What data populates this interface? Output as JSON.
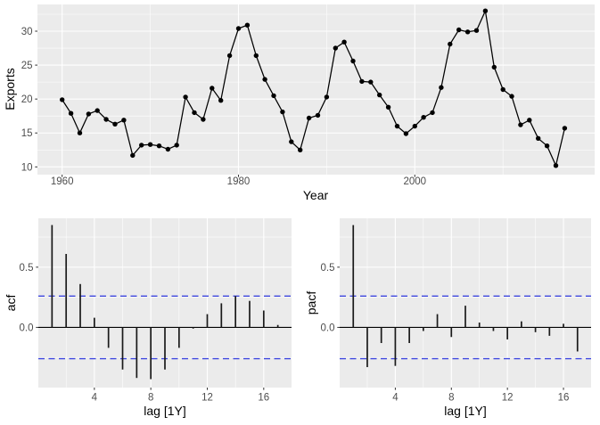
{
  "figure": {
    "background": "#ffffff",
    "panel_bg": "#ebebeb",
    "grid_color": "#ffffff",
    "tick_label_color": "#4d4d4d",
    "tick_mark_color": "#333333",
    "axis_title_color": "#000000",
    "series_color": "#000000",
    "stem_color": "#1a1a1a",
    "zero_line_color": "#000000",
    "significance_color": "#3d46dd"
  },
  "chart_data": [
    {
      "type": "line",
      "series_name": "Exports",
      "xlabel": "Year",
      "ylabel": "Exports",
      "marker": "point",
      "grid": "on",
      "legend": "none",
      "x_start": 1960,
      "x_step": 1,
      "x_end": 2017,
      "values": [
        19.9,
        17.9,
        15.0,
        17.8,
        18.3,
        17.0,
        16.3,
        16.9,
        11.7,
        13.2,
        13.3,
        13.1,
        12.6,
        13.2,
        20.3,
        18.0,
        17.0,
        21.6,
        19.8,
        26.4,
        30.4,
        30.9,
        26.4,
        22.9,
        20.5,
        18.1,
        13.7,
        12.5,
        17.2,
        17.6,
        20.3,
        27.5,
        28.4,
        25.6,
        22.6,
        22.5,
        20.6,
        18.8,
        16.0,
        14.9,
        16.0,
        17.3,
        18.0,
        21.7,
        28.1,
        30.2,
        29.9,
        30.1,
        33.0,
        24.7,
        21.4,
        20.4,
        16.2,
        16.9,
        14.2,
        13.1,
        10.2,
        15.7
      ],
      "xlim": [
        1957.2,
        2020.4
      ],
      "ylim": [
        8.86,
        33.94
      ],
      "x_tick_values": [
        1960,
        1980,
        2000
      ],
      "x_tick_labels": [
        "1960",
        "1980",
        "2000"
      ],
      "x_minor": [
        1970,
        1990,
        2010
      ],
      "y_tick_values": [
        10,
        15,
        20,
        25,
        30
      ],
      "y_tick_labels": [
        "10",
        "15",
        "20",
        "25",
        "30"
      ],
      "y_minor": [
        12.5,
        17.5,
        22.5,
        27.5,
        32.5
      ]
    },
    {
      "type": "bar",
      "subtype": "acf-stems",
      "xlabel": "lag [1Y]",
      "ylabel": "acf",
      "grid": "on",
      "legend": "none",
      "x": [
        1,
        2,
        3,
        4,
        5,
        6,
        7,
        8,
        9,
        10,
        11,
        12,
        13,
        14,
        15,
        16,
        17
      ],
      "values": [
        0.85,
        0.61,
        0.36,
        0.08,
        -0.17,
        -0.35,
        -0.42,
        -0.43,
        -0.35,
        -0.17,
        -0.01,
        0.11,
        0.2,
        0.26,
        0.22,
        0.14,
        0.02
      ],
      "significance_bounds": [
        0.26,
        -0.26
      ],
      "xlim": [
        0.03,
        17.97
      ],
      "ylim": [
        -0.5,
        0.906
      ],
      "x_tick_values": [
        4,
        8,
        12,
        16
      ],
      "x_tick_labels": [
        "4",
        "8",
        "12",
        "16"
      ],
      "x_minor": [
        2,
        6,
        10,
        14
      ],
      "y_tick_values": [
        0,
        0.5
      ],
      "y_tick_labels": [
        "0.0",
        "0.5"
      ],
      "y_minor": [
        -0.25,
        0.25,
        0.75
      ]
    },
    {
      "type": "bar",
      "subtype": "pacf-stems",
      "xlabel": "lag [1Y]",
      "ylabel": "pacf",
      "grid": "on",
      "legend": "none",
      "x": [
        1,
        2,
        3,
        4,
        5,
        6,
        7,
        8,
        9,
        10,
        11,
        12,
        13,
        14,
        15,
        16,
        17
      ],
      "values": [
        0.85,
        -0.33,
        -0.13,
        -0.32,
        -0.13,
        -0.03,
        0.11,
        -0.08,
        0.18,
        0.04,
        -0.03,
        -0.1,
        0.05,
        -0.04,
        -0.07,
        0.03,
        -0.2
      ],
      "significance_bounds": [
        0.26,
        -0.26
      ],
      "xlim": [
        0.03,
        17.97
      ],
      "ylim": [
        -0.5,
        0.906
      ],
      "x_tick_values": [
        4,
        8,
        12,
        16
      ],
      "x_tick_labels": [
        "4",
        "8",
        "12",
        "16"
      ],
      "x_minor": [
        2,
        6,
        10,
        14
      ],
      "y_tick_values": [
        0,
        0.5
      ],
      "y_tick_labels": [
        "0.0",
        "0.5"
      ],
      "y_minor": [
        -0.25,
        0.25,
        0.75
      ]
    }
  ]
}
